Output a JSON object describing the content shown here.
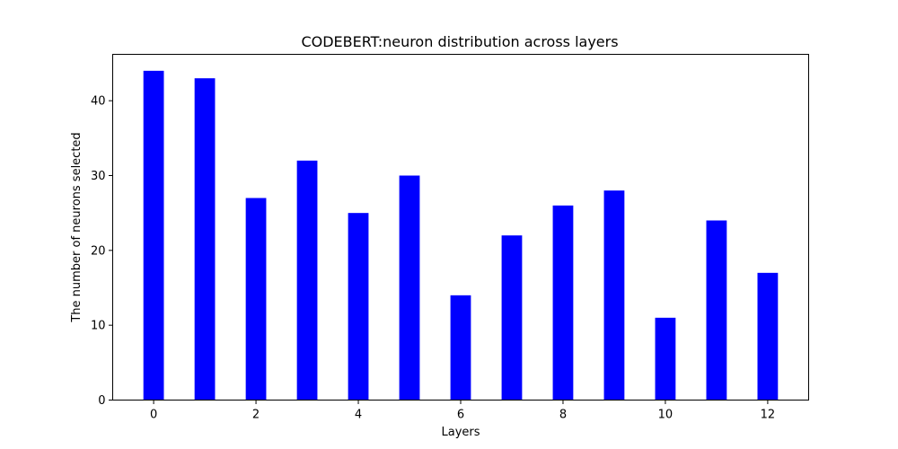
{
  "chart_data": {
    "type": "bar",
    "title": "CODEBERT:neuron distribution across layers",
    "xlabel": "Layers",
    "ylabel": "The number of neurons selected",
    "categories": [
      0,
      1,
      2,
      3,
      4,
      5,
      6,
      7,
      8,
      9,
      10,
      11,
      12
    ],
    "values": [
      44,
      43,
      27,
      32,
      25,
      30,
      14,
      22,
      26,
      28,
      11,
      24,
      17
    ],
    "xlim": [
      -0.8,
      12.8
    ],
    "ylim": [
      0,
      46.2
    ],
    "xticks": [
      0,
      2,
      4,
      6,
      8,
      10,
      12
    ],
    "yticks": [
      0,
      10,
      20,
      30,
      40
    ],
    "bar_color": "#0000ff",
    "grid": false,
    "legend": false
  }
}
